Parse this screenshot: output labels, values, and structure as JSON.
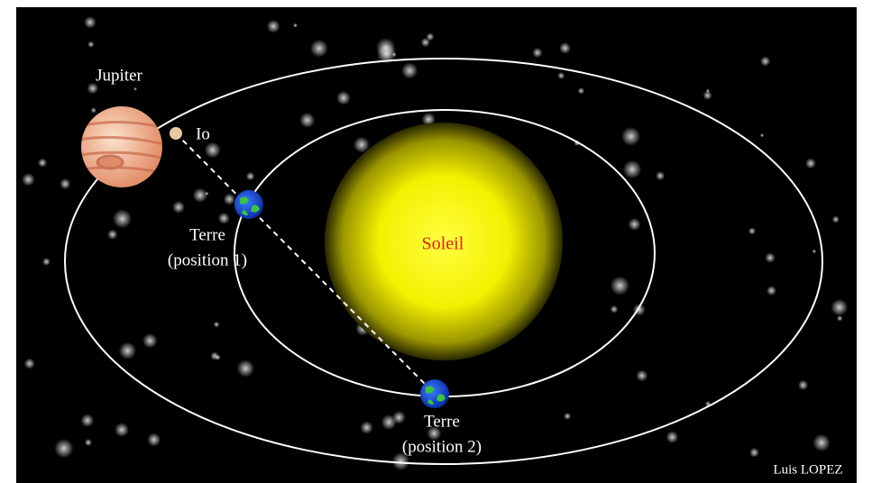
{
  "nodes": {
    "jupiter": {
      "label": "Jupiter"
    },
    "io": {
      "label": "Io"
    },
    "earth1": {
      "label": [
        "Terre",
        "(position 1)"
      ]
    },
    "sun": {
      "label": "Soleil"
    },
    "earth2": {
      "label": [
        "Terre",
        "(position 2)"
      ]
    }
  },
  "credit": "Luis LOPEZ"
}
